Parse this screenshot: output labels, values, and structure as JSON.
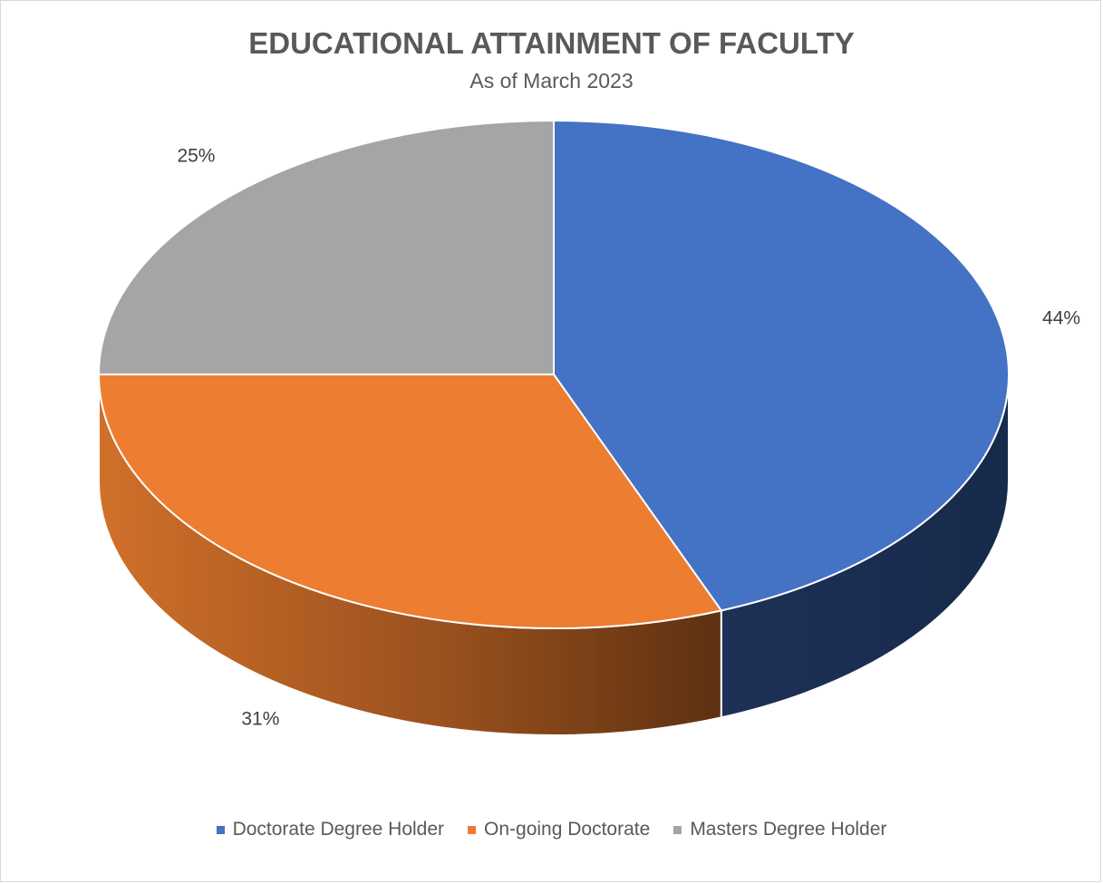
{
  "chart_data": {
    "type": "pie",
    "style": "3d",
    "title": "EDUCATIONAL ATTAINMENT OF FACULTY",
    "subtitle": "As of March 2023",
    "legend_position": "bottom",
    "slices": [
      {
        "name": "Doctorate Degree Holder",
        "value": 44,
        "label": "44%",
        "color": "#4472c4",
        "side_color": "#1a2c52"
      },
      {
        "name": "On-going Doctorate",
        "value": 31,
        "label": "31%",
        "color": "#ed7d31",
        "side_color": "#b8601f"
      },
      {
        "name": "Masters Degree Holder",
        "value": 25,
        "label": "25%",
        "color": "#a5a5a5",
        "side_color": "#6e6e6e"
      }
    ]
  }
}
